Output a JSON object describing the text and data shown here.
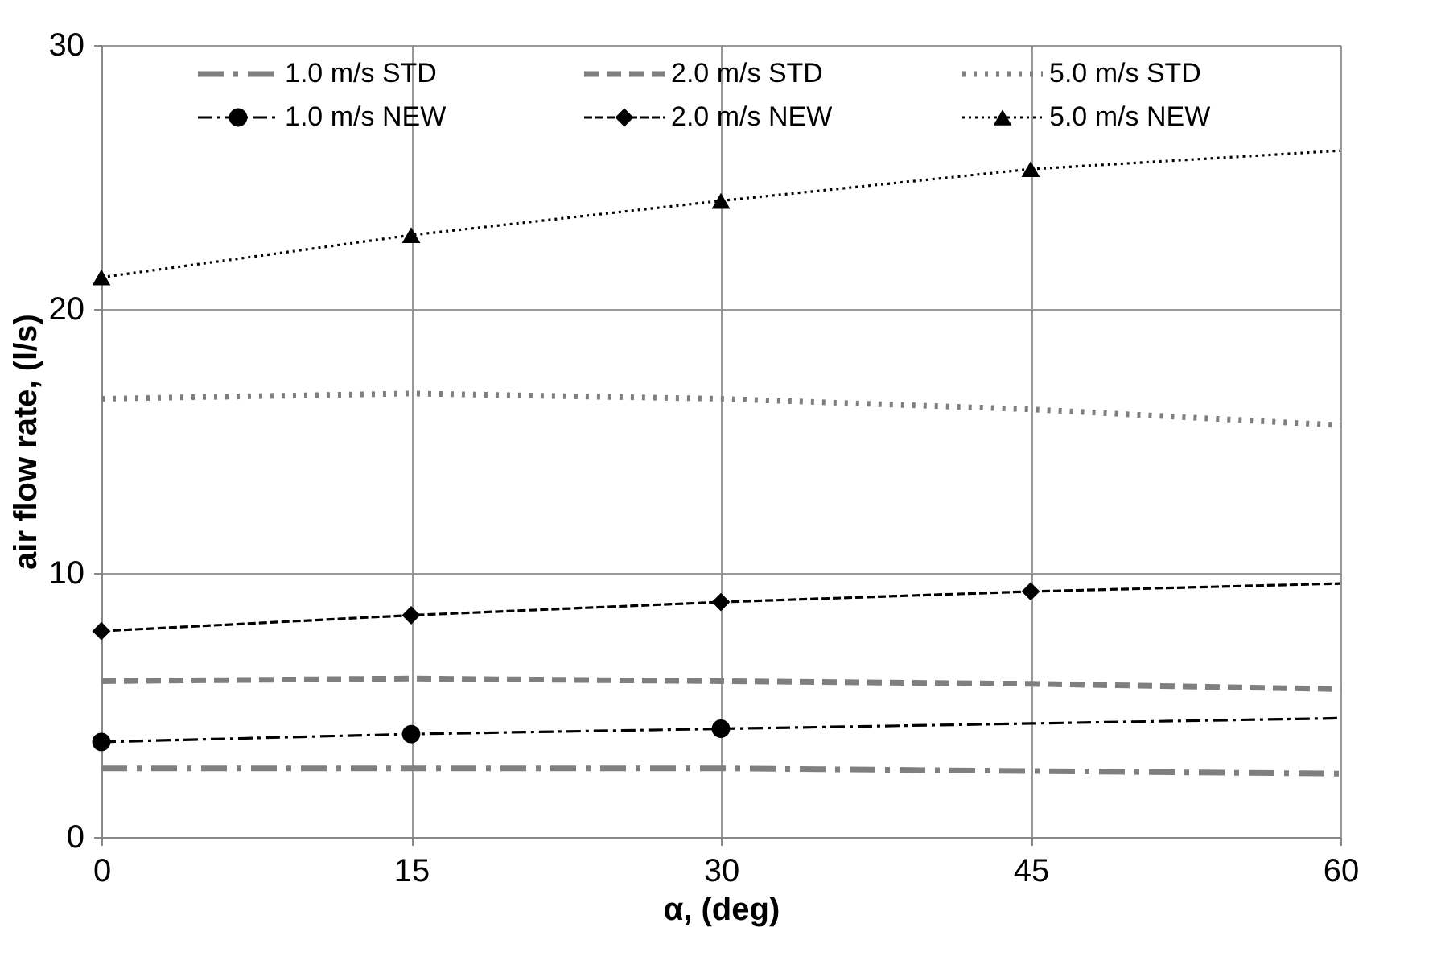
{
  "chart_data": {
    "type": "line",
    "xlabel": "α, (deg)",
    "ylabel": "air flow rate, (l/s)",
    "xlim": [
      0,
      60
    ],
    "xticks": [
      0,
      15,
      30,
      45,
      60
    ],
    "ylim": [
      0,
      30
    ],
    "yticks": [
      0,
      10,
      20,
      30
    ],
    "grid": true,
    "legend": "top",
    "series": [
      {
        "name": "1.0 m/s STD",
        "color": "#7f7f7f",
        "line_style": "dashdot",
        "marker": "none",
        "x": [
          0,
          15,
          30,
          45,
          60
        ],
        "values": [
          2.6,
          2.6,
          2.6,
          2.5,
          2.4
        ]
      },
      {
        "name": "2.0 m/s STD",
        "color": "#7f7f7f",
        "line_style": "dashed",
        "marker": "none",
        "x": [
          0,
          15,
          30,
          45,
          60
        ],
        "values": [
          5.9,
          6.0,
          5.9,
          5.8,
          5.6
        ]
      },
      {
        "name": "5.0 m/s STD",
        "color": "#7f7f7f",
        "line_style": "dotted",
        "marker": "none",
        "x": [
          0,
          15,
          30,
          45,
          60
        ],
        "values": [
          16.6,
          16.8,
          16.6,
          16.2,
          15.6
        ]
      },
      {
        "name": "1.0 m/s NEW",
        "color": "#000000",
        "line_style": "dashdot",
        "marker": "circle",
        "x": [
          0,
          15,
          30
        ],
        "values": [
          3.6,
          3.9,
          4.1
        ]
      },
      {
        "name": "2.0 m/s NEW",
        "color": "#000000",
        "line_style": "dashed",
        "marker": "diamond",
        "x": [
          0,
          15,
          30,
          45
        ],
        "values": [
          7.8,
          8.4,
          8.9,
          9.3
        ]
      },
      {
        "name": "5.0 m/s NEW",
        "color": "#000000",
        "line_style": "dotted",
        "marker": "triangle",
        "x": [
          0,
          15,
          30,
          45
        ],
        "values": [
          21.2,
          22.8,
          24.1,
          25.3
        ]
      },
      {
        "color": "#000000",
        "line_style": "dashdot",
        "marker": "none",
        "x": [
          30,
          45,
          60
        ],
        "values": [
          4.1,
          4.3,
          4.5
        ]
      },
      {
        "color": "#000000",
        "line_style": "dashed",
        "marker": "none",
        "x": [
          45,
          60
        ],
        "values": [
          9.3,
          9.6
        ]
      },
      {
        "color": "#000000",
        "line_style": "dotted",
        "marker": "none",
        "x": [
          45,
          60
        ],
        "values": [
          25.3,
          26.0
        ]
      }
    ]
  }
}
